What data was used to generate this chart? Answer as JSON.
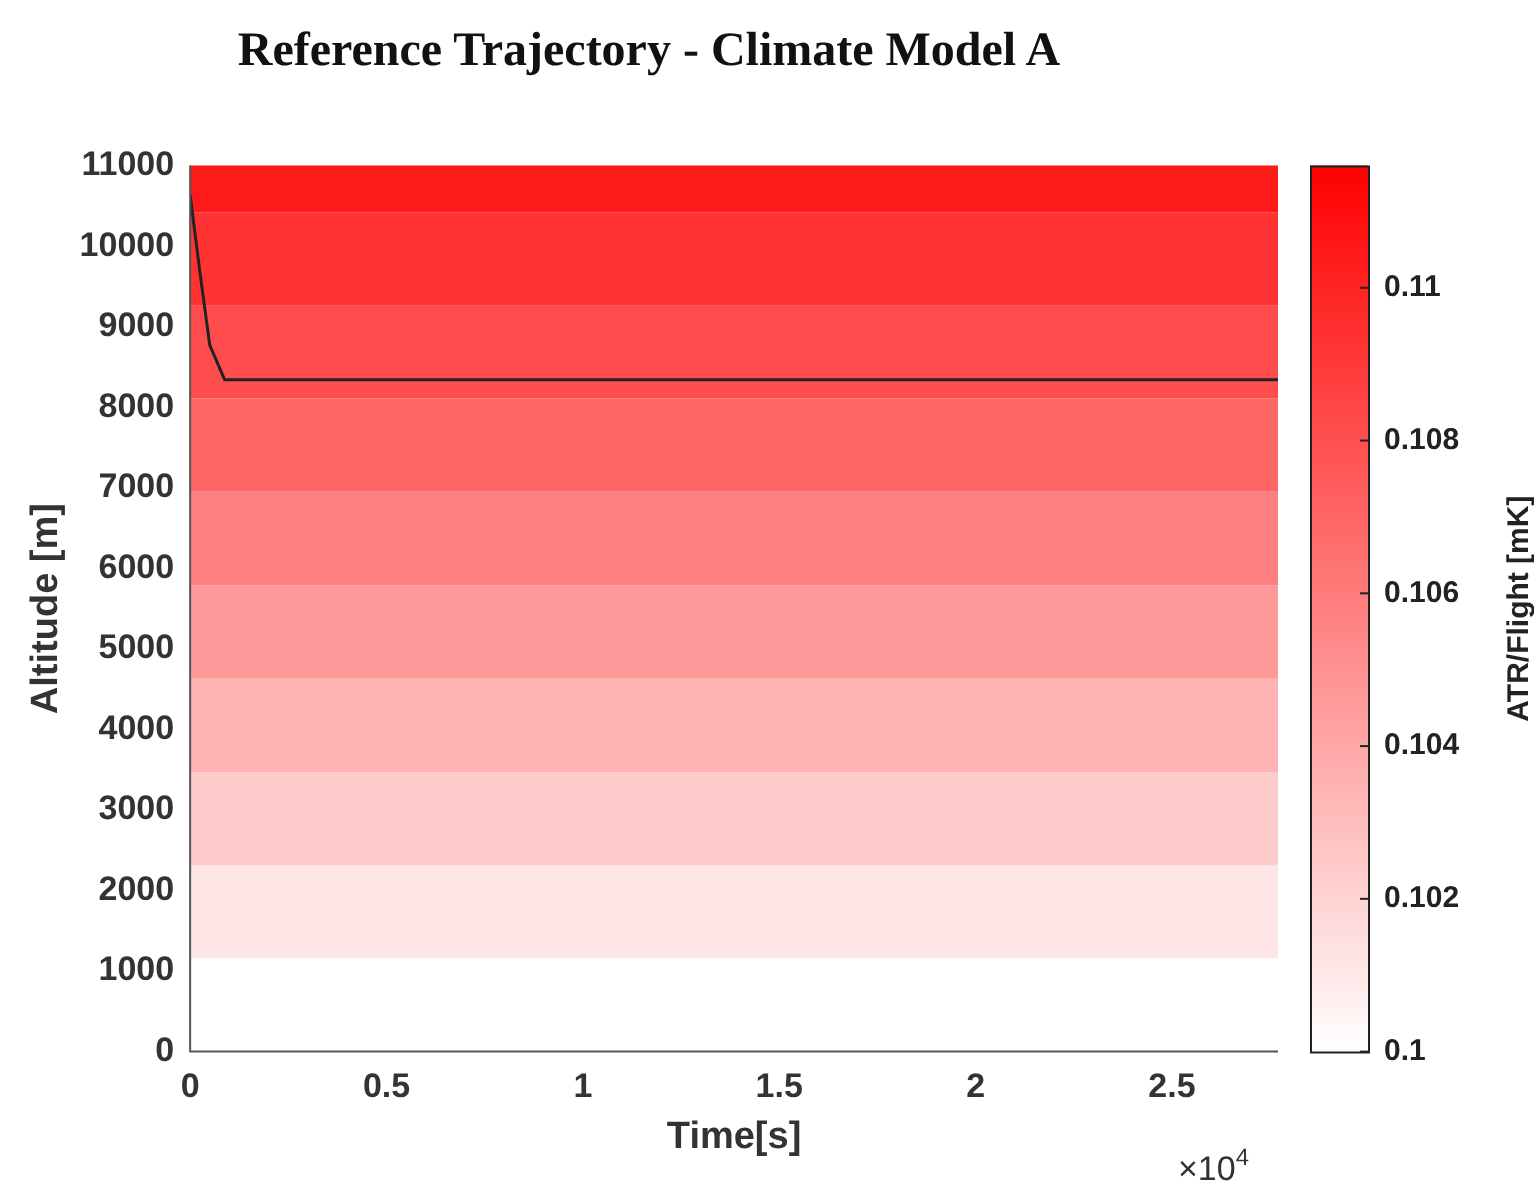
{
  "chart_data": {
    "type": "line",
    "title": "Reference Trajectory - Climate Model A",
    "xlabel": "Time[s]",
    "ylabel": "Altitude [m]",
    "clabel": "ATR/Flight [mK]",
    "xlim": [
      0,
      2.77
    ],
    "xticks": [
      0,
      0.5,
      1,
      1.5,
      2,
      2.5
    ],
    "ylim": [
      0,
      11000
    ],
    "yticks": [
      0,
      1000,
      2000,
      3000,
      4000,
      5000,
      6000,
      7000,
      8000,
      9000,
      10000,
      11000
    ],
    "clim": [
      0.1,
      0.1116
    ],
    "cticks": [
      0.1,
      0.102,
      0.104,
      0.106,
      0.108,
      0.11
    ],
    "annotations": [
      "×10$^{4}$"
    ],
    "bands": [
      {
        "axis": "y",
        "from": 1160,
        "to": 2310,
        "color": "#ffe6e6"
      },
      {
        "axis": "y",
        "from": 2310,
        "to": 3470,
        "color": "#ffcccc"
      },
      {
        "axis": "y",
        "from": 3470,
        "to": 4630,
        "color": "#ffb3b3"
      },
      {
        "axis": "y",
        "from": 4630,
        "to": 5790,
        "color": "#ff9999"
      },
      {
        "axis": "y",
        "from": 5790,
        "to": 6950,
        "color": "#ff8080"
      },
      {
        "axis": "y",
        "from": 6950,
        "to": 8110,
        "color": "#ff6666"
      },
      {
        "axis": "y",
        "from": 8110,
        "to": 9260,
        "color": "#ff4d4d"
      },
      {
        "axis": "y",
        "from": 9260,
        "to": 10420,
        "color": "#ff3333"
      },
      {
        "axis": "y",
        "from": 10420,
        "to": 11000,
        "color": "#ff1a1a"
      }
    ],
    "series": [
      {
        "color": "#222222",
        "x": [
          0,
          0.0245,
          0.05,
          0.088,
          2.77
        ],
        "values": [
          10640,
          9690,
          8770,
          8340,
          8340
        ]
      }
    ],
    "legend": false,
    "grid": false,
    "marker": "none",
    "line_style": "solid"
  }
}
